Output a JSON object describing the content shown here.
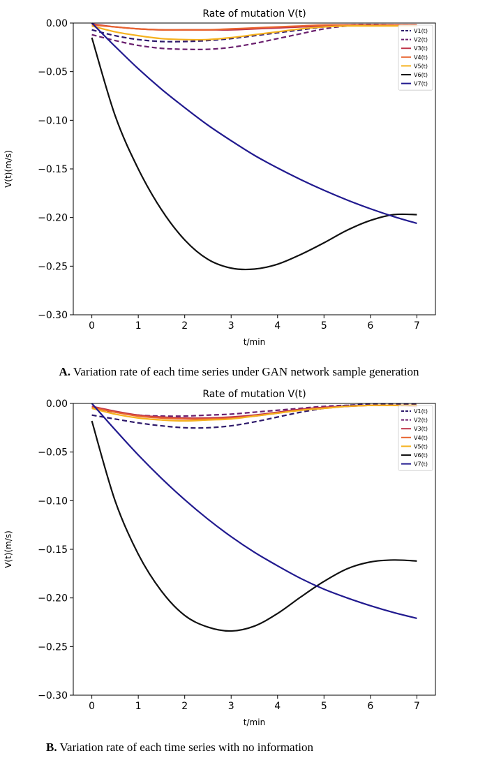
{
  "chart_data": [
    {
      "type": "line",
      "title": "Rate of mutation V(t)",
      "xlabel": "t/min",
      "ylabel": "V(t)(m/s)",
      "xlim": [
        -0.4,
        7.4
      ],
      "ylim": [
        -0.3,
        0.0
      ],
      "x_ticks": [
        0,
        1,
        2,
        3,
        4,
        5,
        6,
        7
      ],
      "y_ticks": [
        0.0,
        -0.05,
        -0.1,
        -0.15,
        -0.2,
        -0.25,
        -0.3
      ],
      "legend_position": "top-right",
      "x": [
        0,
        0.5,
        1,
        1.5,
        2,
        2.5,
        3,
        3.5,
        4,
        4.5,
        5,
        5.5,
        6,
        6.5,
        7
      ],
      "series": [
        {
          "name": "V1(t)",
          "color": "#2e1a6b",
          "dash": true,
          "values": [
            -0.007,
            -0.013,
            -0.017,
            -0.019,
            -0.019,
            -0.018,
            -0.016,
            -0.013,
            -0.01,
            -0.007,
            -0.004,
            -0.002,
            -0.0015,
            -0.002,
            -0.003
          ]
        },
        {
          "name": "V2(t)",
          "color": "#6a1f6e",
          "dash": true,
          "values": [
            -0.012,
            -0.018,
            -0.023,
            -0.026,
            -0.027,
            -0.027,
            -0.025,
            -0.021,
            -0.016,
            -0.011,
            -0.006,
            -0.003,
            -0.002,
            -0.002,
            -0.002
          ]
        },
        {
          "name": "V3(t)",
          "color": "#c0354a",
          "dash": false,
          "values": [
            -0.001,
            -0.004,
            -0.006,
            -0.007,
            -0.007,
            -0.007,
            -0.007,
            -0.006,
            -0.005,
            -0.004,
            -0.003,
            -0.002,
            -0.002,
            -0.002,
            -0.002
          ]
        },
        {
          "name": "V4(t)",
          "color": "#e8642f",
          "dash": false,
          "values": [
            -0.002,
            -0.004,
            -0.006,
            -0.007,
            -0.007,
            -0.007,
            -0.006,
            -0.005,
            -0.004,
            -0.003,
            -0.002,
            -0.002,
            -0.002,
            -0.002,
            -0.002
          ]
        },
        {
          "name": "V5(t)",
          "color": "#f5b21f",
          "dash": false,
          "values": [
            -0.003,
            -0.009,
            -0.013,
            -0.016,
            -0.017,
            -0.017,
            -0.015,
            -0.012,
            -0.009,
            -0.006,
            -0.004,
            -0.003,
            -0.003,
            -0.003,
            -0.003
          ]
        },
        {
          "name": "V6(t)",
          "color": "#111111",
          "dash": false,
          "values": [
            -0.015,
            -0.095,
            -0.15,
            -0.192,
            -0.223,
            -0.243,
            -0.252,
            -0.253,
            -0.248,
            -0.238,
            -0.226,
            -0.213,
            -0.203,
            -0.197,
            -0.197
          ]
        },
        {
          "name": "V7(t)",
          "color": "#211a8f",
          "dash": false,
          "values": [
            0.0,
            -0.024,
            -0.047,
            -0.068,
            -0.087,
            -0.105,
            -0.121,
            -0.136,
            -0.149,
            -0.161,
            -0.172,
            -0.182,
            -0.191,
            -0.199,
            -0.206
          ]
        }
      ]
    },
    {
      "type": "line",
      "title": "Rate of mutation V(t)",
      "xlabel": "t/min",
      "ylabel": "V(t)(m/s)",
      "xlim": [
        -0.4,
        7.4
      ],
      "ylim": [
        -0.3,
        0.0
      ],
      "x_ticks": [
        0,
        1,
        2,
        3,
        4,
        5,
        6,
        7
      ],
      "y_ticks": [
        0.0,
        -0.05,
        -0.1,
        -0.15,
        -0.2,
        -0.25,
        -0.3
      ],
      "legend_position": "top-right",
      "x": [
        0,
        0.5,
        1,
        1.5,
        2,
        2.5,
        3,
        3.5,
        4,
        4.5,
        5,
        5.5,
        6,
        6.5,
        7
      ],
      "series": [
        {
          "name": "V1(t)",
          "color": "#2e1a6b",
          "dash": true,
          "values": [
            -0.012,
            -0.016,
            -0.02,
            -0.023,
            -0.025,
            -0.025,
            -0.023,
            -0.019,
            -0.014,
            -0.009,
            -0.005,
            -0.002,
            -0.001,
            -0.001,
            -0.001
          ]
        },
        {
          "name": "V2(t)",
          "color": "#6a1f6e",
          "dash": true,
          "values": [
            -0.005,
            -0.009,
            -0.012,
            -0.013,
            -0.013,
            -0.012,
            -0.011,
            -0.009,
            -0.007,
            -0.005,
            -0.003,
            -0.002,
            -0.002,
            -0.002,
            -0.003
          ]
        },
        {
          "name": "V3(t)",
          "color": "#c0354a",
          "dash": false,
          "values": [
            -0.003,
            -0.008,
            -0.012,
            -0.014,
            -0.015,
            -0.015,
            -0.014,
            -0.012,
            -0.009,
            -0.006,
            -0.004,
            -0.003,
            -0.002,
            -0.002,
            -0.003
          ]
        },
        {
          "name": "V4(t)",
          "color": "#e8642f",
          "dash": false,
          "values": [
            -0.004,
            -0.009,
            -0.013,
            -0.015,
            -0.016,
            -0.016,
            -0.015,
            -0.013,
            -0.01,
            -0.007,
            -0.005,
            -0.003,
            -0.002,
            -0.002,
            -0.002
          ]
        },
        {
          "name": "V5(t)",
          "color": "#f5b21f",
          "dash": false,
          "values": [
            -0.005,
            -0.011,
            -0.015,
            -0.017,
            -0.018,
            -0.017,
            -0.016,
            -0.013,
            -0.01,
            -0.007,
            -0.005,
            -0.003,
            -0.002,
            -0.002,
            -0.002
          ]
        },
        {
          "name": "V6(t)",
          "color": "#111111",
          "dash": false,
          "values": [
            -0.018,
            -0.1,
            -0.155,
            -0.193,
            -0.218,
            -0.23,
            -0.234,
            -0.229,
            -0.216,
            -0.199,
            -0.183,
            -0.17,
            -0.163,
            -0.161,
            -0.162
          ]
        },
        {
          "name": "V7(t)",
          "color": "#211a8f",
          "dash": false,
          "values": [
            0.0,
            -0.027,
            -0.053,
            -0.077,
            -0.099,
            -0.119,
            -0.137,
            -0.153,
            -0.167,
            -0.18,
            -0.191,
            -0.2,
            -0.208,
            -0.215,
            -0.221
          ]
        }
      ]
    }
  ],
  "captions": {
    "a_label": "A.",
    "a_text": " Variation rate of each time series under GAN network sample generation",
    "b_label": "B.",
    "b_text": " Variation rate of each time series with no information"
  }
}
